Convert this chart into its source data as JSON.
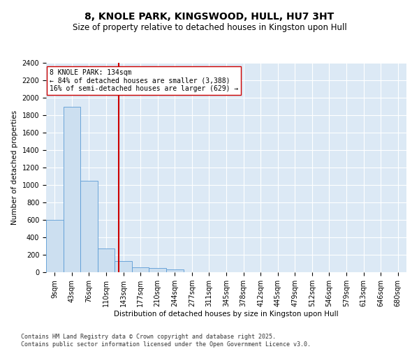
{
  "title": "8, KNOLE PARK, KINGSWOOD, HULL, HU7 3HT",
  "subtitle": "Size of property relative to detached houses in Kingston upon Hull",
  "xlabel": "Distribution of detached houses by size in Kingston upon Hull",
  "ylabel": "Number of detached properties",
  "bins": [
    "9sqm",
    "43sqm",
    "76sqm",
    "110sqm",
    "143sqm",
    "177sqm",
    "210sqm",
    "244sqm",
    "277sqm",
    "311sqm",
    "345sqm",
    "378sqm",
    "412sqm",
    "445sqm",
    "479sqm",
    "512sqm",
    "546sqm",
    "579sqm",
    "613sqm",
    "646sqm",
    "680sqm"
  ],
  "values": [
    600,
    1900,
    1050,
    270,
    130,
    60,
    50,
    30,
    0,
    0,
    0,
    0,
    0,
    0,
    0,
    0,
    0,
    0,
    0,
    0,
    0
  ],
  "bar_color": "#ccdff0",
  "bar_edge_color": "#5b9bd5",
  "vline_color": "#cc0000",
  "annotation_text": "8 KNOLE PARK: 134sqm\n← 84% of detached houses are smaller (3,388)\n16% of semi-detached houses are larger (629) →",
  "annotation_box_color": "#ffffff",
  "annotation_box_edge": "#cc0000",
  "ylim": [
    0,
    2400
  ],
  "yticks": [
    0,
    200,
    400,
    600,
    800,
    1000,
    1200,
    1400,
    1600,
    1800,
    2000,
    2200,
    2400
  ],
  "background_color": "#dce9f5",
  "footer": "Contains HM Land Registry data © Crown copyright and database right 2025.\nContains public sector information licensed under the Open Government Licence v3.0.",
  "title_fontsize": 10,
  "subtitle_fontsize": 8.5,
  "axis_label_fontsize": 7.5,
  "tick_fontsize": 7,
  "footer_fontsize": 6,
  "annotation_fontsize": 7
}
